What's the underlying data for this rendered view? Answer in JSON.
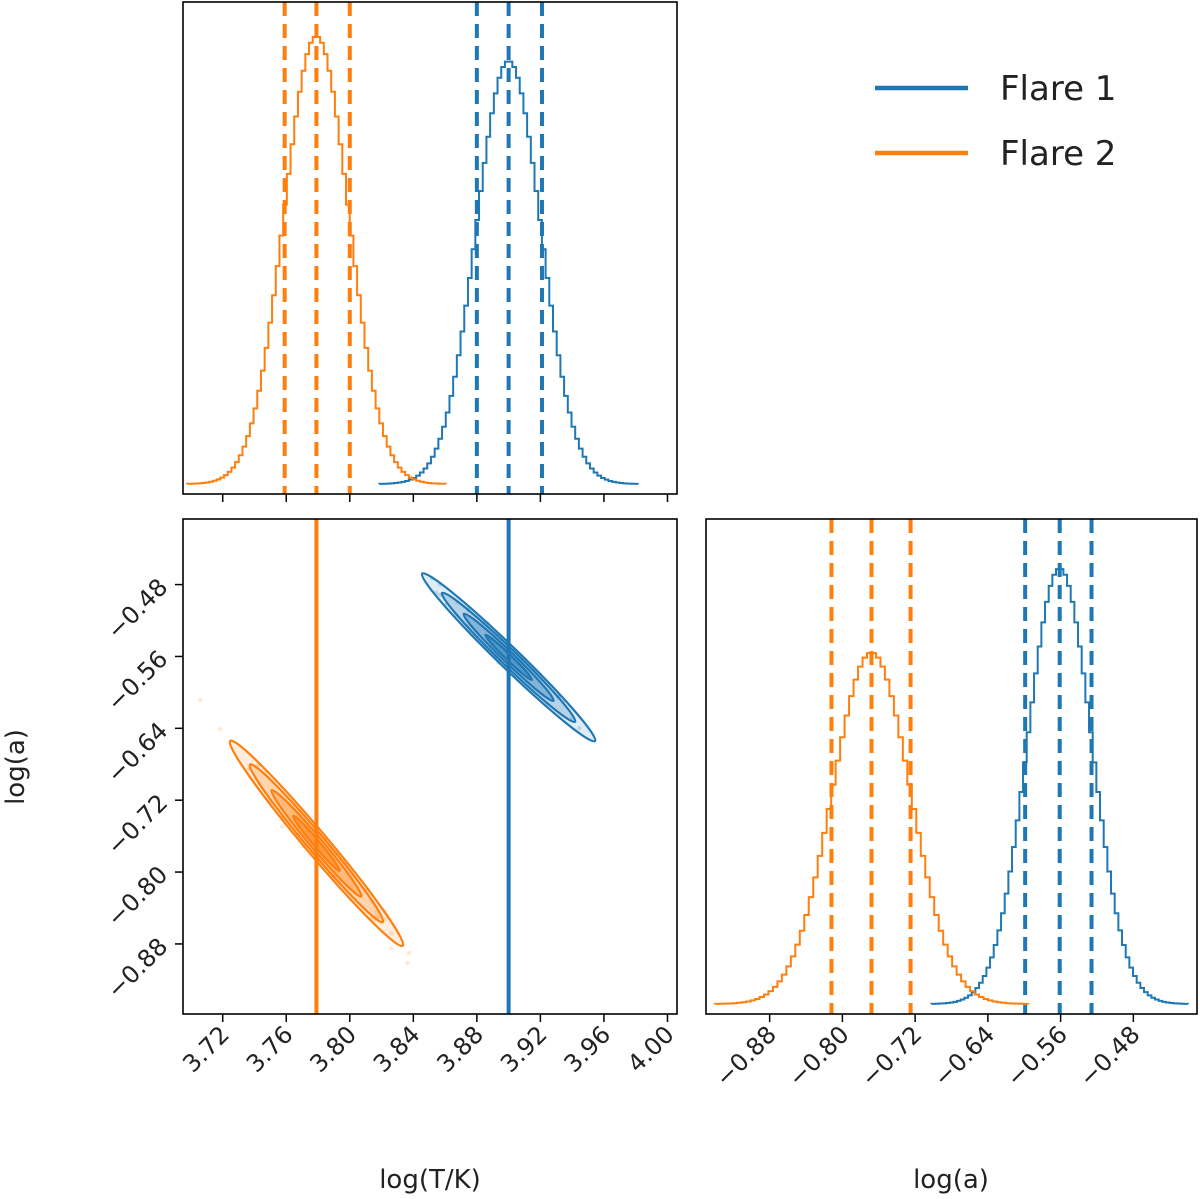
{
  "colors": {
    "flare1": "#1f77b4",
    "flare2": "#ff7f0e",
    "axis": "#000000",
    "text": "#222222"
  },
  "chart_data": {
    "type": "corner",
    "series": [
      {
        "name": "Flare 1",
        "color": "#1f77b4",
        "logT": {
          "p16": 3.88,
          "median": 3.9,
          "p84": 3.921,
          "sigma": 0.021
        },
        "loga": {
          "p16": -0.599,
          "median": -0.561,
          "p84": -0.526,
          "sigma": 0.036
        }
      },
      {
        "name": "Flare 2",
        "color": "#ff7f0e",
        "logT": {
          "p16": 3.759,
          "median": 3.779,
          "p84": 3.8,
          "sigma": 0.021
        },
        "loga": {
          "p16": -0.812,
          "median": -0.768,
          "p84": -0.725,
          "sigma": 0.044
        }
      }
    ],
    "truth_lines": {
      "logT": [
        3.9,
        3.779
      ]
    },
    "panels": [
      {
        "id": "hist-logT",
        "xlabel": "",
        "xlim": [
          3.695,
          4.006
        ]
      },
      {
        "id": "scatter-logT-loga",
        "xlabel": "log(T/K)",
        "ylabel": "log(a)",
        "xlim": [
          3.695,
          4.006
        ],
        "ylim": [
          -0.958,
          -0.407
        ],
        "xticks": [
          "3.72",
          "3.76",
          "3.80",
          "3.84",
          "3.88",
          "3.92",
          "3.96",
          "4.00"
        ],
        "yticks": [
          "−0.48",
          "−0.56",
          "−0.64",
          "−0.72",
          "−0.80",
          "−0.88"
        ]
      },
      {
        "id": "hist-loga",
        "xlabel": "log(a)",
        "xlim": [
          -0.95,
          -0.41
        ],
        "xticks": [
          "−0.88",
          "−0.80",
          "−0.72",
          "−0.64",
          "−0.56",
          "−0.48"
        ]
      }
    ],
    "legend": {
      "position": "top-right",
      "entries": [
        "Flare 1",
        "Flare 2"
      ]
    }
  }
}
